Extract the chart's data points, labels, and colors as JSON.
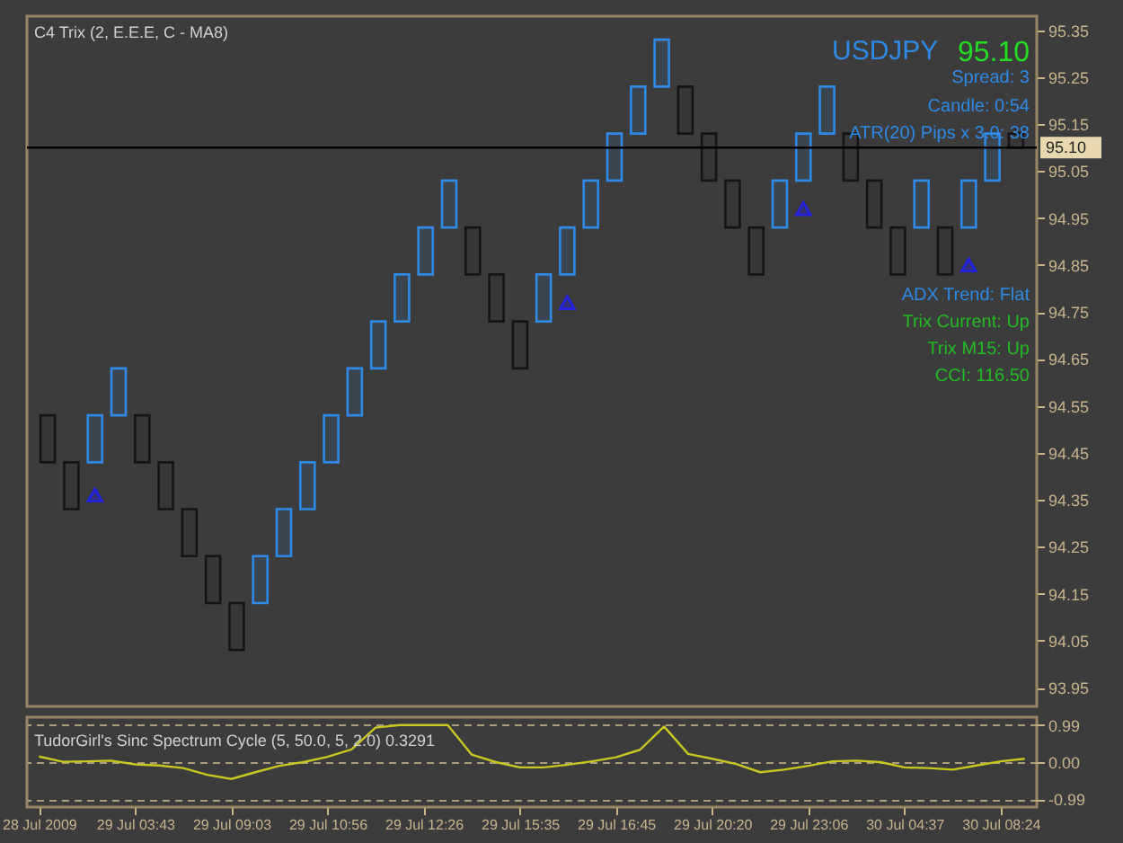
{
  "chart_data": [
    {
      "type": "candlestick",
      "title": "C4 Trix (2, E.E.E, C - MA8)",
      "categories": [
        null,
        null,
        null,
        null,
        null,
        null,
        null,
        null,
        null,
        null,
        null,
        null,
        null,
        null,
        null,
        null,
        null,
        null,
        null,
        null,
        null,
        null,
        null,
        null,
        null,
        null,
        null,
        null,
        null,
        null,
        null,
        null,
        null,
        null,
        null,
        null,
        null,
        null,
        null,
        null,
        null,
        null
      ],
      "ohlc": [
        [
          94.53,
          94.53,
          94.43,
          94.43
        ],
        [
          94.43,
          94.43,
          94.33,
          94.33
        ],
        [
          94.43,
          94.53,
          94.43,
          94.53
        ],
        [
          94.53,
          94.63,
          94.53,
          94.63
        ],
        [
          94.53,
          94.53,
          94.43,
          94.43
        ],
        [
          94.43,
          94.43,
          94.33,
          94.33
        ],
        [
          94.33,
          94.33,
          94.23,
          94.23
        ],
        [
          94.23,
          94.23,
          94.13,
          94.13
        ],
        [
          94.13,
          94.13,
          94.03,
          94.03
        ],
        [
          94.13,
          94.23,
          94.13,
          94.23
        ],
        [
          94.23,
          94.33,
          94.23,
          94.33
        ],
        [
          94.33,
          94.43,
          94.33,
          94.43
        ],
        [
          94.43,
          94.53,
          94.43,
          94.53
        ],
        [
          94.53,
          94.63,
          94.53,
          94.63
        ],
        [
          94.63,
          94.73,
          94.63,
          94.73
        ],
        [
          94.73,
          94.83,
          94.73,
          94.83
        ],
        [
          94.83,
          94.93,
          94.83,
          94.93
        ],
        [
          94.93,
          95.03,
          94.93,
          95.03
        ],
        [
          94.93,
          94.93,
          94.83,
          94.83
        ],
        [
          94.83,
          94.83,
          94.73,
          94.73
        ],
        [
          94.73,
          94.73,
          94.63,
          94.63
        ],
        [
          94.73,
          94.83,
          94.73,
          94.83
        ],
        [
          94.83,
          94.93,
          94.83,
          94.93
        ],
        [
          94.93,
          95.03,
          94.93,
          95.03
        ],
        [
          95.03,
          95.13,
          95.03,
          95.13
        ],
        [
          95.13,
          95.23,
          95.13,
          95.23
        ],
        [
          95.23,
          95.33,
          95.23,
          95.33
        ],
        [
          95.23,
          95.23,
          95.13,
          95.13
        ],
        [
          95.13,
          95.13,
          95.03,
          95.03
        ],
        [
          95.03,
          95.03,
          94.93,
          94.93
        ],
        [
          94.93,
          94.93,
          94.83,
          94.83
        ],
        [
          94.93,
          95.03,
          94.93,
          95.03
        ],
        [
          95.03,
          95.13,
          95.03,
          95.13
        ],
        [
          95.13,
          95.23,
          95.13,
          95.23
        ],
        [
          95.13,
          95.13,
          95.03,
          95.03
        ],
        [
          95.03,
          95.03,
          94.93,
          94.93
        ],
        [
          94.93,
          94.93,
          94.83,
          94.83
        ],
        [
          94.93,
          95.03,
          94.93,
          95.03
        ],
        [
          94.93,
          94.93,
          94.83,
          94.83
        ],
        [
          94.93,
          95.03,
          94.93,
          95.03
        ],
        [
          95.03,
          95.13,
          95.03,
          95.13
        ],
        [
          95.13,
          95.14,
          95.1,
          95.1
        ]
      ],
      "colors": [
        "#151515",
        "#151515",
        "#2e8ae6",
        "#2e8ae6",
        "#151515",
        "#151515",
        "#151515",
        "#151515",
        "#151515",
        "#2e8ae6",
        "#2e8ae6",
        "#2e8ae6",
        "#2e8ae6",
        "#2e8ae6",
        "#2e8ae6",
        "#2e8ae6",
        "#2e8ae6",
        "#2e8ae6",
        "#151515",
        "#151515",
        "#151515",
        "#2e8ae6",
        "#2e8ae6",
        "#2e8ae6",
        "#2e8ae6",
        "#2e8ae6",
        "#2e8ae6",
        "#151515",
        "#151515",
        "#151515",
        "#151515",
        "#2e8ae6",
        "#2e8ae6",
        "#2e8ae6",
        "#151515",
        "#151515",
        "#151515",
        "#2e8ae6",
        "#151515",
        "#2e8ae6",
        "#2e8ae6",
        "#151515"
      ],
      "series": [
        {
          "type": "scatter",
          "color": "#2222dd",
          "values": [
            null,
            null,
            94.36,
            null,
            null,
            null,
            null,
            null,
            null,
            null,
            null,
            null,
            null,
            null,
            null,
            null,
            null,
            null,
            null,
            null,
            null,
            null,
            94.77,
            null,
            null,
            null,
            null,
            null,
            null,
            null,
            null,
            null,
            94.97,
            null,
            null,
            null,
            null,
            null,
            null,
            94.85,
            null,
            null
          ]
        }
      ],
      "marker": "triangle",
      "ylim": [
        93.91,
        95.38
      ],
      "yticks": [
        93.95,
        94.05,
        94.15,
        94.25,
        94.35,
        94.45,
        94.55,
        94.65,
        94.75,
        94.85,
        94.95,
        95.05,
        95.15,
        95.25,
        95.35
      ],
      "ref_lines": [
        {
          "axis": "y",
          "value": 95.1,
          "label": "95.10",
          "color": "#000000"
        }
      ],
      "annotations": [
        "USDJPY",
        "95.10",
        "Spread:  3",
        "Candle:  0:54",
        "ATR(20) Pips x 3.0:  38",
        "ADX Trend: Flat",
        "Trix Current: Up",
        "Trix M15:  Up",
        "CCI: 116.50"
      ],
      "tick_labels": "y",
      "grid": false
    },
    {
      "type": "line",
      "title": "TudorGirl's Sinc Spectrum Cycle (5, 50.0, 5, 2.0) 0.3291",
      "categories": [
        "28 Jul 2009",
        null,
        null,
        null,
        "29 Jul 03:43",
        null,
        null,
        null,
        "29 Jul 09:03",
        null,
        null,
        null,
        "29 Jul 10:56",
        null,
        null,
        null,
        "29 Jul 12:26",
        null,
        null,
        null,
        "29 Jul 15:35",
        null,
        null,
        null,
        "29 Jul 16:45",
        null,
        null,
        null,
        "29 Jul 20:20",
        null,
        null,
        null,
        "29 Jul 23:06",
        null,
        null,
        null,
        "30 Jul 04:37",
        null,
        null,
        null,
        "30 Jul 08:24",
        null
      ],
      "series": [
        {
          "color": "#c8c820",
          "values": [
            0.15,
            0.01,
            0.02,
            0.04,
            -0.06,
            -0.09,
            -0.16,
            -0.34,
            -0.45,
            -0.27,
            -0.1,
            0.0,
            0.14,
            0.34,
            0.92,
            0.99,
            0.99,
            0.99,
            0.2,
            0.0,
            -0.14,
            -0.14,
            -0.07,
            0.02,
            0.13,
            0.33,
            0.95,
            0.22,
            0.09,
            -0.05,
            -0.27,
            -0.2,
            -0.1,
            0.02,
            0.04,
            0.0,
            -0.14,
            -0.16,
            -0.2,
            -0.09,
            0.02,
            0.09
          ]
        }
      ],
      "ylim": [
        -1.2,
        1.2
      ],
      "yticks": [
        0.99,
        {
          "value": 0,
          "label": "0.00"
        },
        -0.99
      ],
      "grid": "y"
    }
  ]
}
